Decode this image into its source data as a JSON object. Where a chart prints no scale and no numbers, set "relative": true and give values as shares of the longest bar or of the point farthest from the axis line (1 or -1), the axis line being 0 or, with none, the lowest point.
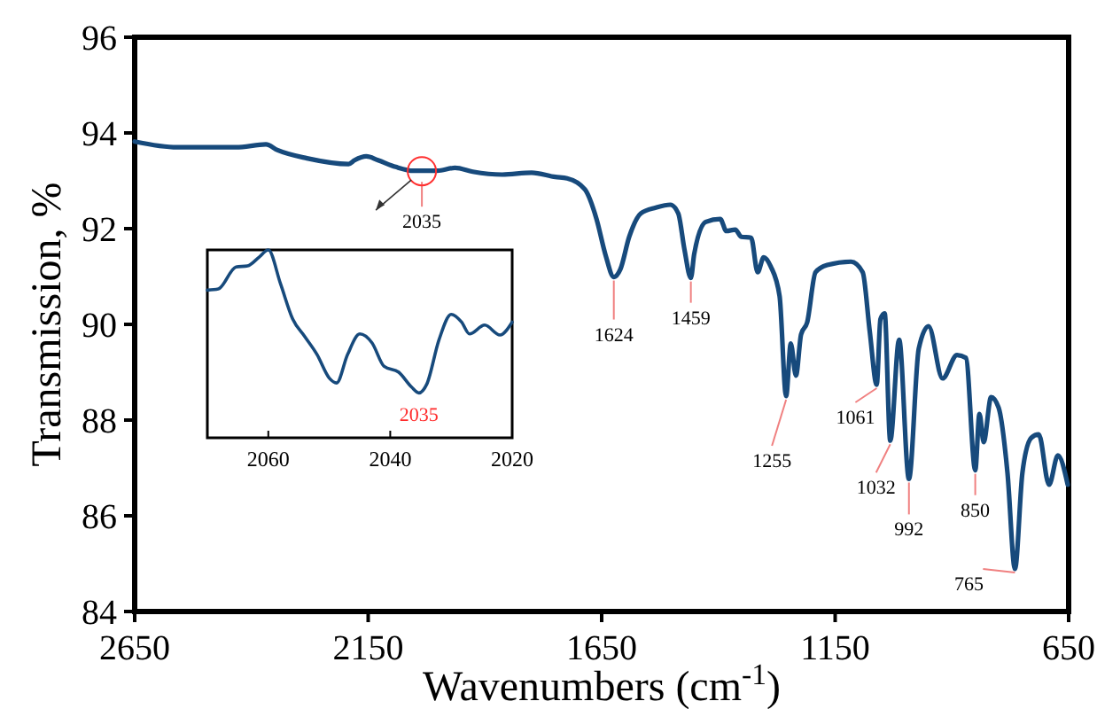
{
  "chart_data": [
    {
      "type": "line",
      "xlabel": "Wavenumbers (cm$^{-1}$)",
      "ylabel": "Transmission, %",
      "xlim": [
        2650,
        650
      ],
      "xticks": [
        2650,
        2150,
        1650,
        1150,
        650
      ],
      "ylim": [
        84,
        96
      ],
      "yticks": [
        84,
        86,
        88,
        90,
        92,
        94,
        96
      ],
      "series": [
        {
          "color": "#174a7c",
          "x": [
            2650,
            2559,
            2433,
            2369,
            2344,
            2281,
            2192,
            2179,
            2154,
            2129,
            2091,
            2053,
            2002,
            1964,
            1926,
            1863,
            1800,
            1749,
            1724,
            1686,
            1661,
            1642,
            1624,
            1610,
            1591,
            1566,
            1534,
            1503,
            1486,
            1473,
            1459,
            1452,
            1427,
            1396,
            1383,
            1364,
            1351,
            1330,
            1316,
            1303,
            1288,
            1269,
            1255,
            1245,
            1234,
            1223,
            1210,
            1192,
            1167,
            1116,
            1091,
            1076,
            1061,
            1053,
            1044,
            1032,
            1013,
            992,
            971,
            950,
            920,
            889,
            870,
            850,
            841,
            832,
            816,
            800,
            781,
            765,
            749,
            730,
            714,
            692,
            673,
            652
          ],
          "values": [
            93.82,
            93.7,
            93.7,
            93.76,
            93.64,
            93.47,
            93.35,
            93.43,
            93.51,
            93.43,
            93.29,
            93.21,
            93.21,
            93.27,
            93.19,
            93.13,
            93.17,
            93.08,
            93.05,
            92.82,
            92.2,
            91.46,
            90.99,
            91.15,
            91.83,
            92.32,
            92.44,
            92.5,
            92.32,
            91.58,
            90.97,
            91.46,
            92.14,
            92.2,
            91.95,
            91.98,
            91.83,
            91.81,
            91.09,
            91.4,
            91.21,
            90.59,
            88.5,
            89.6,
            88.93,
            89.79,
            90.04,
            91.09,
            91.24,
            91.31,
            91.09,
            89.86,
            88.74,
            90.11,
            90.23,
            87.57,
            89.68,
            86.77,
            89.49,
            89.96,
            88.87,
            89.36,
            89.3,
            86.95,
            88.13,
            87.54,
            88.48,
            88.26,
            86.9,
            84.89,
            86.9,
            87.63,
            87.7,
            86.65,
            87.26,
            86.65
          ]
        }
      ],
      "annotations": [
        {
          "text": "2035",
          "x": 2035,
          "y": 93.2
        },
        {
          "text": "1624",
          "x": 1624,
          "y": 90.99
        },
        {
          "text": "1459",
          "x": 1459,
          "y": 90.97
        },
        {
          "text": "1255",
          "x": 1255,
          "y": 88.5
        },
        {
          "text": "1061",
          "x": 1061,
          "y": 88.74
        },
        {
          "text": "1032",
          "x": 1032,
          "y": 87.57
        },
        {
          "text": "992",
          "x": 992,
          "y": 86.77
        },
        {
          "text": "850",
          "x": 850,
          "y": 86.95
        },
        {
          "text": "765",
          "x": 765,
          "y": 84.89
        }
      ]
    },
    {
      "type": "line",
      "relative": true,
      "xlim": [
        2070,
        2020
      ],
      "xticks": [
        2060,
        2040,
        2020
      ],
      "tick_labels": "x",
      "series": [
        {
          "color": "#174a7c",
          "x": [
            2070,
            2068.2,
            2065.3,
            2063.4,
            2061.5,
            2060,
            2058,
            2056,
            2054,
            2052,
            2050,
            2048.8,
            2047,
            2045,
            2043,
            2041,
            2038.6,
            2036.5,
            2035.3,
            2034,
            2032,
            2030,
            2028.3,
            2027,
            2024.5,
            2022,
            2020
          ],
          "values": [
            0.786,
            0.792,
            0.909,
            0.915,
            0.962,
            1,
            0.82,
            0.632,
            0.538,
            0.443,
            0.318,
            0.292,
            0.443,
            0.553,
            0.506,
            0.38,
            0.349,
            0.27,
            0.239,
            0.286,
            0.522,
            0.657,
            0.616,
            0.553,
            0.6,
            0.547,
            0.616
          ]
        }
      ],
      "annotations": [
        {
          "text": "2035",
          "x": 2035.3,
          "y": 0.239
        }
      ]
    }
  ]
}
